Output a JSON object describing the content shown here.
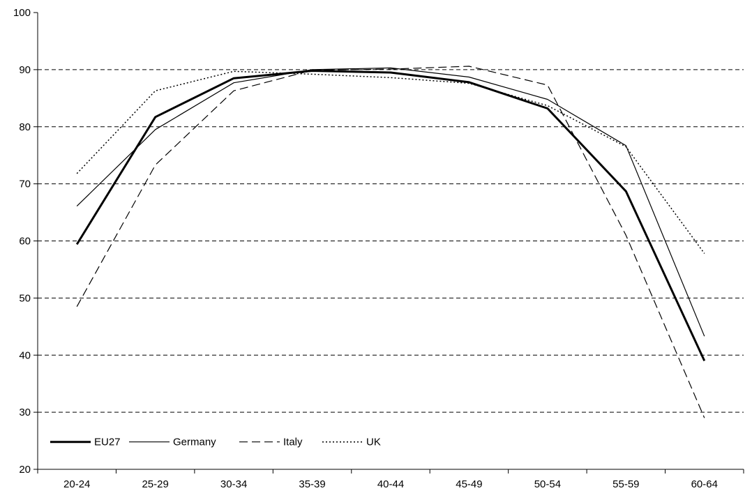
{
  "chart_data": {
    "type": "line",
    "title": "",
    "xlabel": "",
    "ylabel": "",
    "categories": [
      "20-24",
      "25-29",
      "30-34",
      "35-39",
      "40-44",
      "45-49",
      "50-54",
      "55-59",
      "60-64"
    ],
    "ylim": [
      20,
      100
    ],
    "yticks": [
      20,
      30,
      40,
      50,
      60,
      70,
      80,
      90,
      100
    ],
    "grid": "horizontal-dashed",
    "legend_position": "bottom-left",
    "series": [
      {
        "name": "EU27",
        "style": "solid-thick",
        "color": "#000000",
        "values": [
          59.4,
          81.7,
          88.5,
          89.8,
          89.5,
          87.8,
          83.2,
          68.7,
          39.0
        ]
      },
      {
        "name": "Germany",
        "style": "solid-thin",
        "color": "#000000",
        "values": [
          66.1,
          79.5,
          87.7,
          90.0,
          90.3,
          88.7,
          84.8,
          76.7,
          43.3
        ]
      },
      {
        "name": "Italy",
        "style": "dashed",
        "color": "#000000",
        "values": [
          48.5,
          73.3,
          86.3,
          89.9,
          90.1,
          90.6,
          87.3,
          61.0,
          29.0
        ]
      },
      {
        "name": "UK",
        "style": "dotted",
        "color": "#000000",
        "values": [
          71.8,
          86.3,
          89.7,
          89.2,
          88.6,
          87.6,
          83.7,
          76.5,
          57.8
        ]
      }
    ]
  }
}
